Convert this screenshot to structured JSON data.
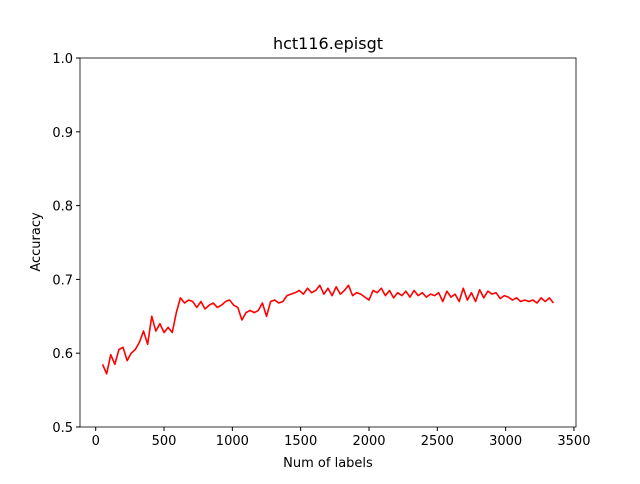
{
  "chart_data": {
    "type": "line",
    "title": "hct116.episgt",
    "x_label": "Num of labels",
    "y_label": "Accuracy",
    "x": [
      50,
      80,
      110,
      140,
      170,
      200,
      230,
      260,
      290,
      320,
      350,
      380,
      410,
      440,
      470,
      500,
      530,
      560,
      590,
      620,
      650,
      680,
      710,
      740,
      770,
      800,
      830,
      860,
      890,
      920,
      950,
      980,
      1010,
      1040,
      1070,
      1100,
      1130,
      1160,
      1190,
      1220,
      1250,
      1280,
      1310,
      1340,
      1370,
      1400,
      1430,
      1460,
      1490,
      1520,
      1550,
      1580,
      1610,
      1640,
      1670,
      1700,
      1730,
      1760,
      1790,
      1820,
      1850,
      1880,
      1910,
      1940,
      1970,
      2000,
      2030,
      2060,
      2090,
      2120,
      2150,
      2180,
      2210,
      2240,
      2270,
      2300,
      2330,
      2360,
      2390,
      2420,
      2450,
      2480,
      2510,
      2540,
      2570,
      2600,
      2630,
      2660,
      2690,
      2720,
      2750,
      2780,
      2810,
      2840,
      2870,
      2900,
      2930,
      2960,
      2990,
      3020,
      3050,
      3080,
      3110,
      3140,
      3170,
      3200,
      3230,
      3260,
      3290,
      3320,
      3350
    ],
    "series": [
      {
        "color": "#ff0000",
        "values": [
          0.585,
          0.572,
          0.598,
          0.585,
          0.605,
          0.608,
          0.59,
          0.6,
          0.605,
          0.615,
          0.63,
          0.612,
          0.65,
          0.63,
          0.64,
          0.628,
          0.635,
          0.628,
          0.655,
          0.675,
          0.668,
          0.672,
          0.67,
          0.662,
          0.67,
          0.66,
          0.665,
          0.668,
          0.662,
          0.665,
          0.67,
          0.672,
          0.665,
          0.662,
          0.645,
          0.655,
          0.658,
          0.655,
          0.658,
          0.668,
          0.65,
          0.67,
          0.672,
          0.668,
          0.67,
          0.678,
          0.68,
          0.682,
          0.685,
          0.68,
          0.688,
          0.682,
          0.685,
          0.692,
          0.68,
          0.688,
          0.678,
          0.69,
          0.68,
          0.685,
          0.692,
          0.678,
          0.682,
          0.68,
          0.676,
          0.672,
          0.685,
          0.682,
          0.688,
          0.678,
          0.685,
          0.675,
          0.682,
          0.678,
          0.684,
          0.676,
          0.685,
          0.678,
          0.682,
          0.676,
          0.68,
          0.678,
          0.682,
          0.67,
          0.684,
          0.676,
          0.68,
          0.67,
          0.688,
          0.672,
          0.682,
          0.67,
          0.686,
          0.675,
          0.684,
          0.68,
          0.682,
          0.674,
          0.678,
          0.676,
          0.672,
          0.675,
          0.67,
          0.672,
          0.67,
          0.672,
          0.668,
          0.675,
          0.67,
          0.675,
          0.668
        ]
      }
    ],
    "xlim": [
      -115,
      3515
    ],
    "xticks": [
      0,
      500,
      1000,
      1500,
      2000,
      2500,
      3000,
      3500
    ],
    "ylim": [
      0.5,
      1
    ],
    "yticks": [
      0.5,
      0.6,
      0.7,
      0.8,
      0.9,
      {
        "value": 1,
        "label": "1.0"
      }
    ]
  }
}
